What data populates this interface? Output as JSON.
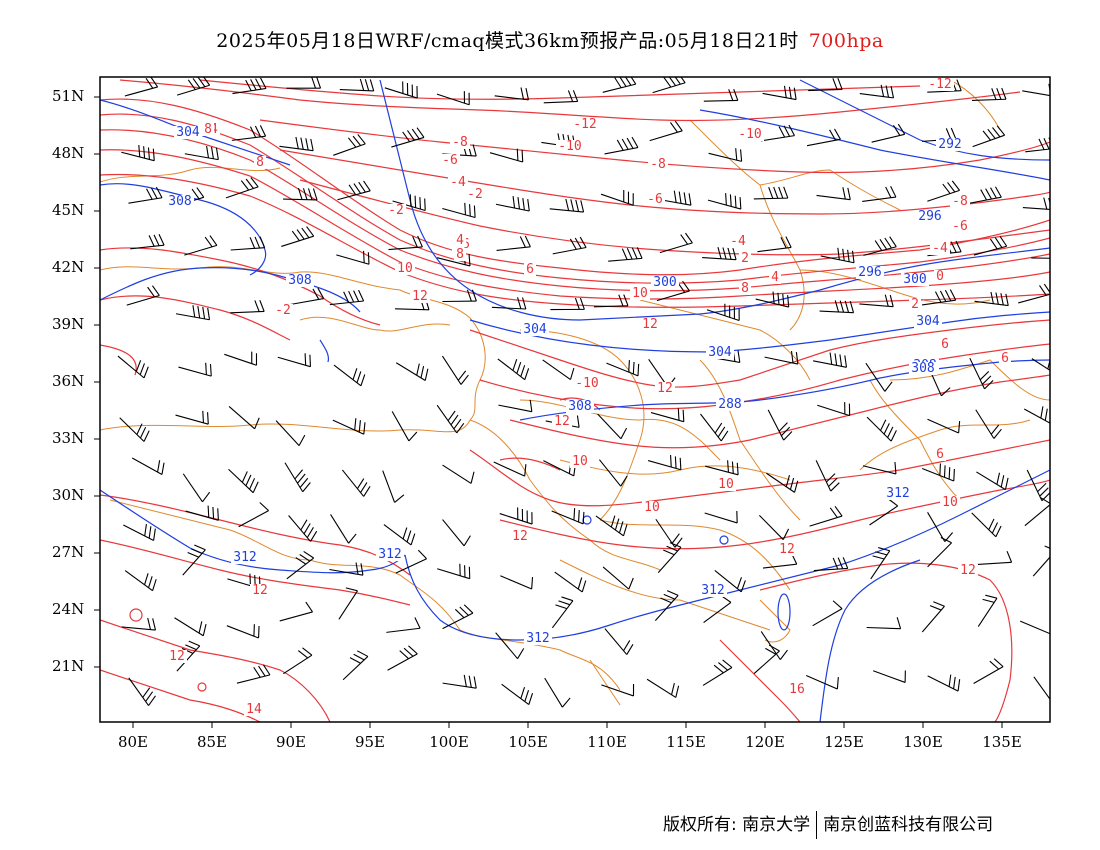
{
  "title": {
    "main": "2025年05月18日WRF/cmaq模式36km预报产品:05月18日21时",
    "level": "700hpa"
  },
  "axes": {
    "lat_labels": [
      "51N",
      "48N",
      "45N",
      "42N",
      "39N",
      "36N",
      "33N",
      "30N",
      "27N",
      "24N",
      "21N"
    ],
    "lon_labels": [
      "80E",
      "85E",
      "90E",
      "95E",
      "100E",
      "105E",
      "110E",
      "115E",
      "120E",
      "125E",
      "130E",
      "135E"
    ]
  },
  "footer": {
    "copyright": "版权所有: 南京大学",
    "company": "南京创蓝科技有限公司"
  },
  "colors": {
    "temperature": "#e8383b",
    "geopotential": "#1f3fe0",
    "boundary": "#e0892e",
    "wind": "#000000"
  },
  "temperature_labels": [
    "-12",
    "-12",
    "-10",
    "-10",
    "-8",
    "-8",
    "-8",
    "-6",
    "-6",
    "-6",
    "-6",
    "-4",
    "-4",
    "-4",
    "-4",
    "-2",
    "-2",
    "0",
    "2",
    "2",
    "4",
    "4",
    "6",
    "6",
    "6",
    "8",
    "8",
    "8",
    "10",
    "10",
    "10",
    "10",
    "10",
    "10",
    "12",
    "12",
    "12",
    "12",
    "12",
    "12",
    "12",
    "12",
    "12",
    "14",
    "16",
    "-10",
    "-2",
    "8",
    "6"
  ],
  "geopotential_labels": [
    "304",
    "308",
    "308",
    "304",
    "296",
    "300",
    "304",
    "308",
    "308",
    "288",
    "292",
    "296",
    "300",
    "304",
    "308",
    "312",
    "312",
    "312",
    "312",
    "312"
  ]
}
